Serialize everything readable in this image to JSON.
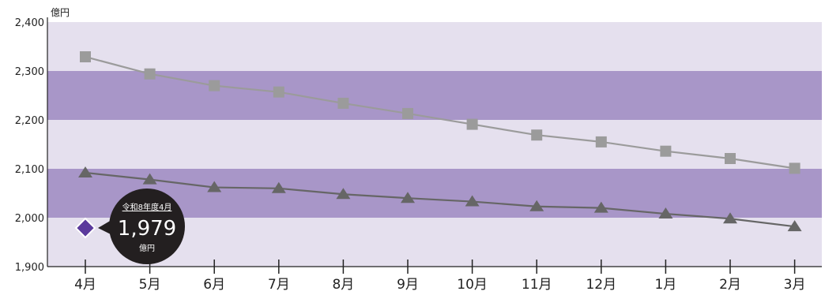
{
  "chart_data": {
    "type": "line",
    "unit_label": "億円",
    "ylim": [
      1900,
      2400
    ],
    "y_ticks": [
      "1,900",
      "2,000",
      "2,100",
      "2,200",
      "2,300",
      "2,400"
    ],
    "y_tick_values": [
      1900,
      2000,
      2100,
      2200,
      2300,
      2400
    ],
    "categories": [
      "4月",
      "5月",
      "6月",
      "7月",
      "8月",
      "9月",
      "10月",
      "11月",
      "12月",
      "1月",
      "2月",
      "3月"
    ],
    "series": [
      {
        "marker": "square",
        "color": "#9b9b9b",
        "values": [
          2329,
          2294,
          2270,
          2257,
          2234,
          2213,
          2191,
          2169,
          2155,
          2136,
          2121,
          2101
        ]
      },
      {
        "marker": "triangle",
        "color": "#666666",
        "values": [
          2092,
          2078,
          2062,
          2060,
          2048,
          2040,
          2033,
          2023,
          2020,
          2008,
          1998,
          1982
        ]
      },
      {
        "marker": "diamond",
        "color": "#5b3a9c",
        "values": [
          1979,
          null,
          null,
          null,
          null,
          null,
          null,
          null,
          null,
          null,
          null,
          null
        ]
      }
    ],
    "callout": {
      "header": "令和8年度4月",
      "value": "1,979",
      "unit": "億円"
    },
    "band_colors": [
      "#e5e0ee",
      "#a896c8"
    ],
    "grid": false,
    "legend": "none"
  }
}
